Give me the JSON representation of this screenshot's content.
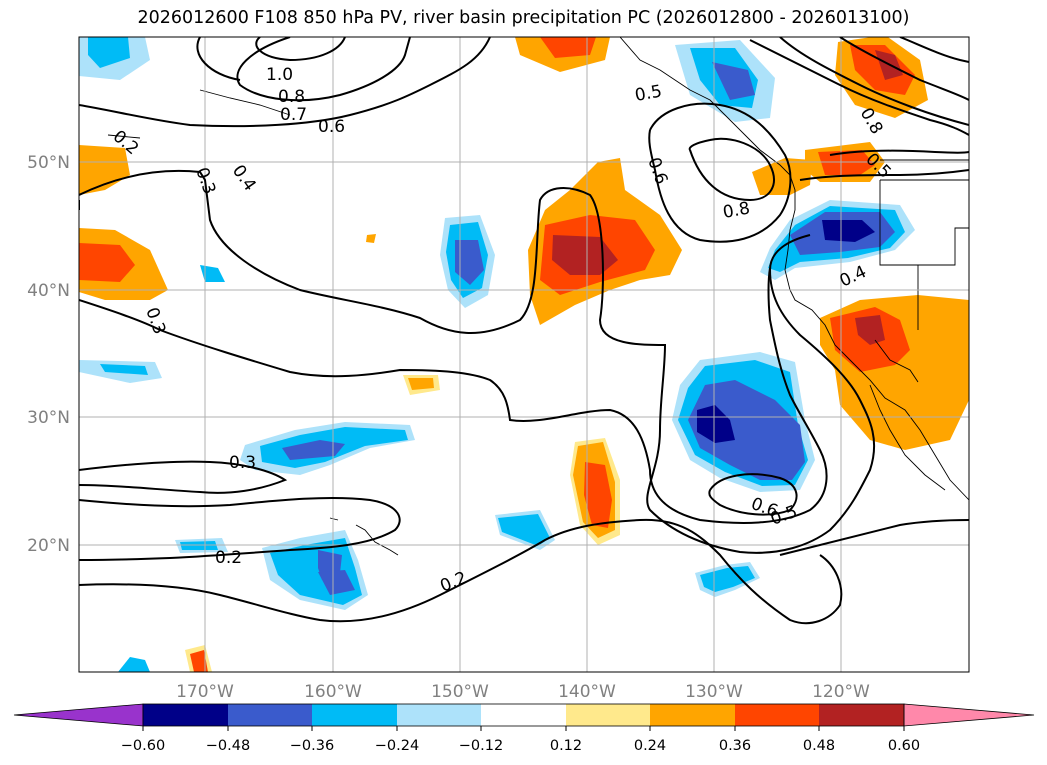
{
  "title": "2026012600 F108 850 hPa PV, river basin precipitation PC (2026012800 - 2026013100)",
  "map": {
    "lat_labels": [
      "50°N",
      "40°N",
      "30°N",
      "20°N"
    ],
    "lon_labels": [
      "170°W",
      "160°W",
      "150°W",
      "140°W",
      "130°W",
      "120°W"
    ],
    "contour_labels": [
      "1.0",
      "0.8",
      "0.7",
      "0.6",
      "0.5",
      "0.6",
      "0.8",
      "0.8",
      "0.5",
      "0.4",
      "0.3",
      "0.4",
      "0.2",
      "0.3",
      "0.3",
      "0.2",
      "0.2",
      "0.6",
      "0.5"
    ],
    "colors": {
      "grid": "#b0b0b0",
      "axis_label": "#808080",
      "contour": "#000000"
    }
  },
  "colorbar": {
    "ticks": [
      "−0.60",
      "−0.48",
      "−0.36",
      "−0.24",
      "−0.12",
      "0.12",
      "0.24",
      "0.36",
      "0.48",
      "0.60"
    ],
    "colors": [
      "#9933cc",
      "#000088",
      "#3a5bcc",
      "#00bbf6",
      "#ade2fa",
      "#ffffff",
      "#ffe98c",
      "#ffa500",
      "#ff4500",
      "#b22222",
      "#ff88aa"
    ]
  }
}
